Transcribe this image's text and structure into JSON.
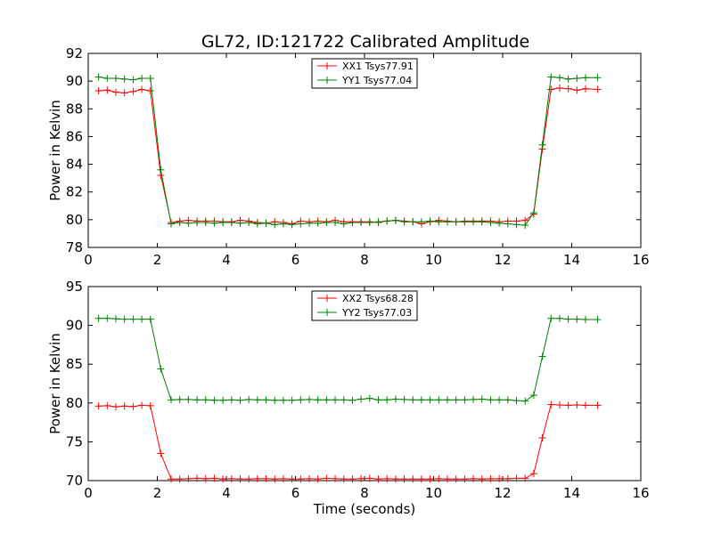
{
  "figure": {
    "title": "GL72, ID:121722 Calibrated Amplitude"
  },
  "chart_data": [
    {
      "type": "line",
      "title": "GL72, ID:121722 Calibrated Amplitude",
      "xlabel": "",
      "ylabel": "Power in Kelvin",
      "xlim": [
        0,
        16
      ],
      "ylim": [
        78,
        92
      ],
      "xticks": [
        "0",
        "2",
        "4",
        "6",
        "8",
        "10",
        "12",
        "14",
        "16"
      ],
      "yticks": [
        "78",
        "80",
        "82",
        "84",
        "86",
        "88",
        "90",
        "92"
      ],
      "grid": false,
      "legend_position": "top-center",
      "x": [
        0.3,
        0.55,
        0.8,
        1.05,
        1.3,
        1.55,
        1.8,
        2.1,
        2.4,
        2.65,
        2.9,
        3.15,
        3.4,
        3.65,
        3.9,
        4.15,
        4.4,
        4.65,
        4.9,
        5.15,
        5.4,
        5.65,
        5.9,
        6.15,
        6.4,
        6.65,
        6.9,
        7.15,
        7.4,
        7.65,
        7.9,
        8.15,
        8.4,
        8.65,
        8.9,
        9.15,
        9.4,
        9.65,
        9.9,
        10.15,
        10.4,
        10.65,
        10.9,
        11.15,
        11.4,
        11.65,
        11.9,
        12.15,
        12.4,
        12.65,
        12.9,
        13.15,
        13.4,
        13.65,
        13.9,
        14.15,
        14.4,
        14.75
      ],
      "series": [
        {
          "name": "XX1 Tsys77.91",
          "color": "#ff0000",
          "values": [
            89.3,
            89.35,
            89.2,
            89.15,
            89.25,
            89.4,
            89.3,
            83.2,
            79.8,
            79.9,
            79.95,
            79.9,
            79.9,
            79.9,
            79.85,
            79.85,
            79.95,
            79.9,
            79.8,
            79.75,
            79.85,
            79.8,
            79.7,
            79.9,
            79.85,
            79.9,
            79.85,
            79.95,
            79.85,
            79.85,
            79.85,
            79.85,
            79.8,
            79.9,
            79.95,
            79.9,
            79.85,
            79.7,
            79.85,
            79.95,
            79.9,
            79.85,
            79.9,
            79.9,
            79.9,
            79.9,
            79.85,
            79.9,
            79.9,
            79.95,
            80.4,
            85.1,
            89.4,
            89.5,
            89.45,
            89.35,
            89.45,
            89.4
          ]
        },
        {
          "name": "YY1 Tsys77.04",
          "color": "#008000",
          "values": [
            90.3,
            90.2,
            90.2,
            90.15,
            90.1,
            90.2,
            90.2,
            83.6,
            79.7,
            79.8,
            79.75,
            79.8,
            79.8,
            79.75,
            79.8,
            79.8,
            79.75,
            79.8,
            79.7,
            79.75,
            79.65,
            79.7,
            79.65,
            79.7,
            79.75,
            79.75,
            79.8,
            79.8,
            79.7,
            79.8,
            79.8,
            79.8,
            79.85,
            79.9,
            79.95,
            79.85,
            79.85,
            79.85,
            79.9,
            79.85,
            79.85,
            79.85,
            79.85,
            79.85,
            79.85,
            79.8,
            79.75,
            79.7,
            79.65,
            79.6,
            80.5,
            85.4,
            90.3,
            90.25,
            90.15,
            90.2,
            90.25,
            90.25
          ]
        }
      ]
    },
    {
      "type": "line",
      "title": "",
      "xlabel": "Time (seconds)",
      "ylabel": "Power in Kelvin",
      "xlim": [
        0,
        16
      ],
      "ylim": [
        70,
        95
      ],
      "xticks": [
        "0",
        "2",
        "4",
        "6",
        "8",
        "10",
        "12",
        "14",
        "16"
      ],
      "yticks": [
        "70",
        "75",
        "80",
        "85",
        "90",
        "95"
      ],
      "grid": false,
      "legend_position": "top-center",
      "x": [
        0.3,
        0.55,
        0.8,
        1.05,
        1.3,
        1.55,
        1.8,
        2.1,
        2.4,
        2.65,
        2.9,
        3.15,
        3.4,
        3.65,
        3.9,
        4.15,
        4.4,
        4.65,
        4.9,
        5.15,
        5.4,
        5.65,
        5.9,
        6.15,
        6.4,
        6.65,
        6.9,
        7.15,
        7.4,
        7.65,
        7.9,
        8.15,
        8.4,
        8.65,
        8.9,
        9.15,
        9.4,
        9.65,
        9.9,
        10.15,
        10.4,
        10.65,
        10.9,
        11.15,
        11.4,
        11.65,
        11.9,
        12.15,
        12.4,
        12.65,
        12.9,
        13.15,
        13.4,
        13.65,
        13.9,
        14.15,
        14.4,
        14.75
      ],
      "series": [
        {
          "name": "XX2 Tsys68.28",
          "color": "#ff0000",
          "values": [
            79.6,
            79.65,
            79.5,
            79.6,
            79.55,
            79.7,
            79.65,
            73.5,
            70.2,
            70.2,
            70.25,
            70.3,
            70.25,
            70.3,
            70.2,
            70.25,
            70.2,
            70.2,
            70.25,
            70.25,
            70.2,
            70.25,
            70.2,
            70.2,
            70.25,
            70.2,
            70.3,
            70.25,
            70.2,
            70.2,
            70.25,
            70.3,
            70.2,
            70.25,
            70.2,
            70.2,
            70.2,
            70.2,
            70.2,
            70.25,
            70.2,
            70.2,
            70.2,
            70.25,
            70.2,
            70.25,
            70.25,
            70.25,
            70.3,
            70.3,
            70.9,
            75.5,
            79.8,
            79.75,
            79.7,
            79.75,
            79.7,
            79.7
          ]
        },
        {
          "name": "YY2 Tsys77.03",
          "color": "#008000",
          "values": [
            90.9,
            90.9,
            90.85,
            90.8,
            90.8,
            90.8,
            90.8,
            84.4,
            80.4,
            80.45,
            80.45,
            80.4,
            80.4,
            80.35,
            80.35,
            80.4,
            80.35,
            80.45,
            80.4,
            80.4,
            80.35,
            80.35,
            80.35,
            80.4,
            80.45,
            80.4,
            80.4,
            80.4,
            80.4,
            80.35,
            80.5,
            80.6,
            80.4,
            80.4,
            80.5,
            80.45,
            80.4,
            80.4,
            80.4,
            80.4,
            80.4,
            80.4,
            80.4,
            80.45,
            80.5,
            80.4,
            80.4,
            80.4,
            80.3,
            80.25,
            81.0,
            86.0,
            90.9,
            90.9,
            90.8,
            90.8,
            90.75,
            90.75
          ]
        }
      ]
    }
  ]
}
